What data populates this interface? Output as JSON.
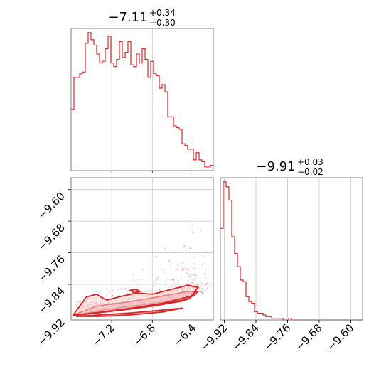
{
  "colors": {
    "series": "#d62728",
    "frame": "#808080",
    "grid": "#c8c8c8"
  },
  "chart_data": [
    {
      "type": "histogram",
      "panel": "top-left",
      "title_value": "−7.11",
      "title_plus": "+0.34",
      "title_minus": "−0.30",
      "xlim": [
        -7.6,
        -6.2
      ],
      "xticks": [
        -7.2,
        -6.8,
        -6.4
      ],
      "bin_edges_start": -7.6,
      "bin_width": 0.028,
      "counts": [
        34,
        52,
        52,
        54,
        55,
        71,
        77,
        73,
        70,
        65,
        60,
        61,
        68,
        75,
        60,
        58,
        62,
        72,
        63,
        66,
        72,
        59,
        58,
        65,
        60,
        68,
        62,
        52,
        61,
        54,
        53,
        46,
        48,
        44,
        30,
        30,
        25,
        24,
        23,
        15,
        14,
        12,
        12,
        6,
        10,
        6,
        5,
        2,
        2,
        3
      ]
    },
    {
      "type": "scatter_contour",
      "panel": "bottom-left",
      "xlim": [
        -7.6,
        -6.2
      ],
      "ylim": [
        -9.93,
        -9.57
      ],
      "xticks": [
        -7.2,
        -6.8,
        -6.4
      ],
      "xtick_labels": [
        "−7.2",
        "−6.8",
        "−6.4"
      ],
      "yticks": [
        -9.6,
        -9.68,
        -9.76,
        -9.84,
        -9.92
      ],
      "ytick_labels": [
        "−9.60",
        "−9.68",
        "−9.76",
        "−9.84",
        "−9.92"
      ],
      "contours": [
        [
          [
            -7.55,
            -9.918
          ],
          [
            -7.3,
            -9.905
          ],
          [
            -7.0,
            -9.895
          ],
          [
            -6.7,
            -9.885
          ],
          [
            -6.45,
            -9.872
          ],
          [
            -6.38,
            -9.866
          ],
          [
            -6.5,
            -9.882
          ],
          [
            -6.8,
            -9.895
          ],
          [
            -7.1,
            -9.905
          ],
          [
            -7.4,
            -9.914
          ],
          [
            -7.55,
            -9.918
          ]
        ],
        [
          [
            -7.58,
            -9.918
          ],
          [
            -7.35,
            -9.895
          ],
          [
            -7.05,
            -9.885
          ],
          [
            -6.75,
            -9.872
          ],
          [
            -6.45,
            -9.858
          ],
          [
            -6.35,
            -9.858
          ],
          [
            -6.45,
            -9.878
          ],
          [
            -6.8,
            -9.893
          ],
          [
            -7.15,
            -9.905
          ],
          [
            -7.45,
            -9.915
          ],
          [
            -7.58,
            -9.918
          ]
        ],
        [
          [
            -7.58,
            -9.918
          ],
          [
            -7.45,
            -9.872
          ],
          [
            -7.35,
            -9.865
          ],
          [
            -7.25,
            -9.88
          ],
          [
            -7.1,
            -9.87
          ],
          [
            -6.95,
            -9.862
          ],
          [
            -6.8,
            -9.865
          ],
          [
            -6.6,
            -9.852
          ],
          [
            -6.45,
            -9.842
          ],
          [
            -6.35,
            -9.848
          ],
          [
            -6.42,
            -9.87
          ],
          [
            -6.7,
            -9.888
          ],
          [
            -7.0,
            -9.9
          ],
          [
            -7.3,
            -9.91
          ],
          [
            -7.58,
            -9.918
          ]
        ],
        [
          [
            -7.55,
            -9.921
          ],
          [
            -7.3,
            -9.917
          ],
          [
            -7.0,
            -9.912
          ],
          [
            -6.7,
            -9.905
          ],
          [
            -6.5,
            -9.9
          ],
          [
            -6.7,
            -9.91
          ],
          [
            -7.0,
            -9.917
          ],
          [
            -7.3,
            -9.921
          ],
          [
            -7.55,
            -9.921
          ]
        ]
      ],
      "extra_contours": [
        [
          [
            -7.02,
            -9.855
          ],
          [
            -6.96,
            -9.852
          ],
          [
            -6.92,
            -9.858
          ],
          [
            -6.98,
            -9.862
          ],
          [
            -7.02,
            -9.855
          ]
        ]
      ]
    },
    {
      "type": "histogram",
      "panel": "bottom-right",
      "title_value": "−9.91",
      "title_plus": "+0.03",
      "title_minus": "−0.02",
      "xlim": [
        -9.93,
        -9.57
      ],
      "xticks": [
        -9.92,
        -9.84,
        -9.76,
        -9.68,
        -9.6
      ],
      "xtick_labels": [
        "−9.92",
        "−9.84",
        "−9.76",
        "−9.68",
        "−9.60"
      ],
      "bin_edges_start": -9.93,
      "bin_width": 0.0072,
      "counts": [
        55,
        83,
        80,
        72,
        50,
        40,
        32,
        24,
        23,
        14,
        11,
        10,
        5,
        4,
        4,
        3,
        2,
        2,
        1,
        1,
        1,
        1,
        0,
        0,
        1,
        0,
        0,
        0,
        0,
        0,
        0,
        0,
        0,
        0,
        0,
        0,
        0,
        0,
        0,
        0,
        0,
        0,
        0,
        0,
        0,
        0,
        0,
        0,
        0,
        0
      ]
    }
  ]
}
